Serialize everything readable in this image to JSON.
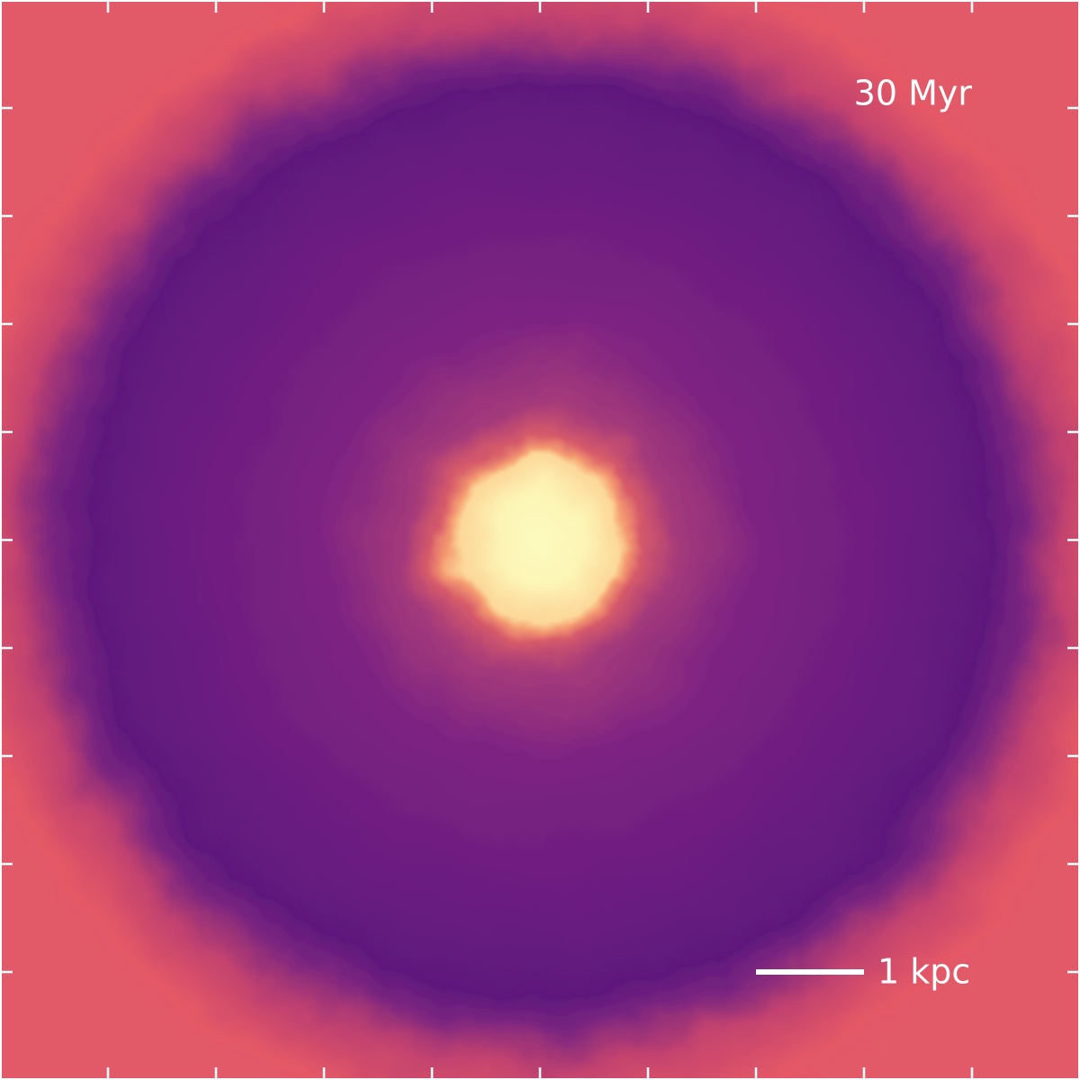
{
  "annotations": {
    "time": "30 Myr",
    "scale_bar": "1 kpc"
  }
}
